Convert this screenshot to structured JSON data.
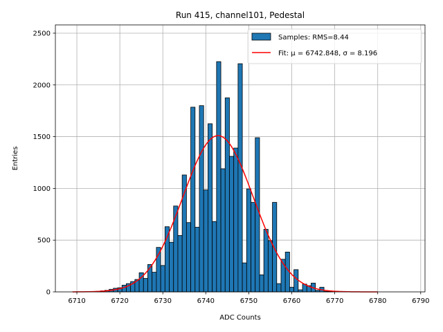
{
  "chart_data": {
    "type": "bar",
    "title": "Run 415, channel101, Pedestal",
    "xlabel": "ADC Counts",
    "ylabel": "Entries",
    "xlim": [
      6705,
      6791
    ],
    "ylim": [
      0,
      2580
    ],
    "xticks": [
      6710,
      6720,
      6730,
      6740,
      6750,
      6760,
      6770,
      6780,
      6790
    ],
    "yticks": [
      0,
      500,
      1000,
      1500,
      2000,
      2500
    ],
    "grid": true,
    "legend_position": "upper-right",
    "bin_width": 1,
    "series": [
      {
        "name": "Samples: RMS=8.44",
        "color": "#1f77b4",
        "edgecolor": "#000000",
        "x": [
          6715,
          6716,
          6717,
          6718,
          6719,
          6720,
          6721,
          6722,
          6723,
          6724,
          6725,
          6726,
          6727,
          6728,
          6729,
          6730,
          6731,
          6732,
          6733,
          6734,
          6735,
          6736,
          6737,
          6738,
          6739,
          6740,
          6741,
          6742,
          6743,
          6744,
          6745,
          6746,
          6747,
          6748,
          6749,
          6750,
          6751,
          6752,
          6753,
          6754,
          6755,
          6756,
          6757,
          6758,
          6759,
          6760,
          6761,
          6762,
          6763,
          6764,
          6765,
          6766,
          6767,
          6768,
          6769
        ],
        "values": [
          5,
          10,
          15,
          25,
          35,
          40,
          65,
          80,
          100,
          120,
          185,
          130,
          265,
          190,
          430,
          255,
          630,
          480,
          830,
          545,
          1130,
          670,
          1785,
          625,
          1800,
          985,
          1625,
          680,
          2225,
          1190,
          1875,
          1310,
          1390,
          2205,
          280,
          995,
          865,
          1490,
          165,
          605,
          495,
          865,
          80,
          315,
          385,
          45,
          215,
          20,
          75,
          60,
          85,
          15,
          45,
          5,
          5
        ]
      },
      {
        "name": "Fit: μ = 6742.848, σ = 8.196",
        "type": "line",
        "color": "#ff0000",
        "mu": 6742.848,
        "sigma": 8.196,
        "peak": 1510,
        "xrange": [
          6709,
          6780
        ]
      }
    ]
  }
}
